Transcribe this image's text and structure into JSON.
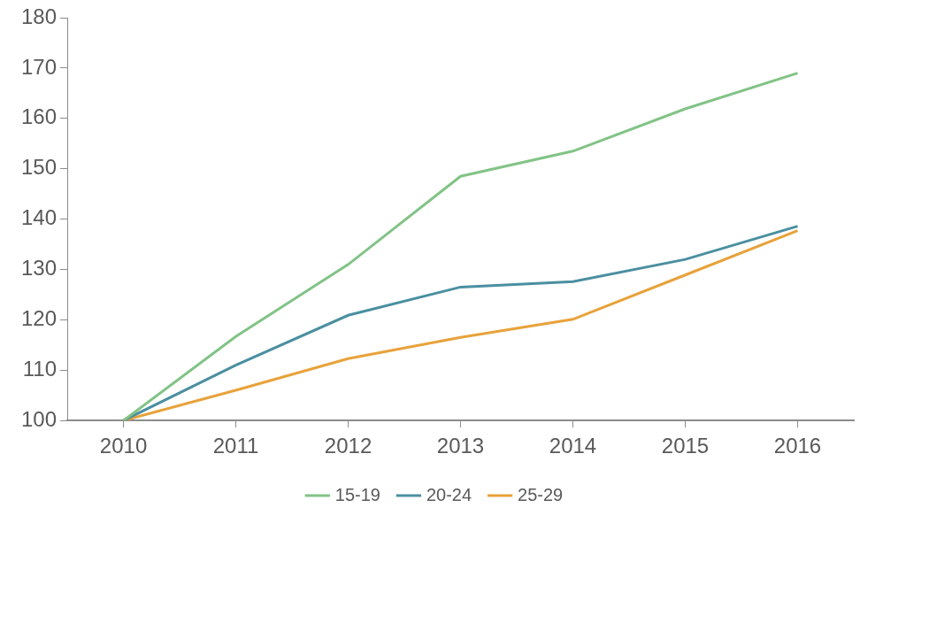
{
  "chart_data": {
    "type": "line",
    "categories": [
      "2010",
      "2011",
      "2012",
      "2013",
      "2014",
      "2015",
      "2016"
    ],
    "series": [
      {
        "name": "15-19",
        "color": "#82c386",
        "values": [
          100,
          116.7,
          131,
          148.5,
          153.5,
          161.9,
          169
        ]
      },
      {
        "name": "20-24",
        "color": "#4a8fa0",
        "values": [
          100,
          111,
          120.9,
          126.5,
          127.6,
          132,
          138.6
        ]
      },
      {
        "name": "25-29",
        "color": "#e8a23a",
        "values": [
          100,
          106,
          112.3,
          116.5,
          120.1,
          128.9,
          137.7
        ]
      }
    ],
    "ylim": [
      100,
      180
    ],
    "yticks": [
      100,
      110,
      120,
      130,
      140,
      150,
      160,
      170,
      180
    ],
    "grid": false,
    "legend": "bottom"
  }
}
